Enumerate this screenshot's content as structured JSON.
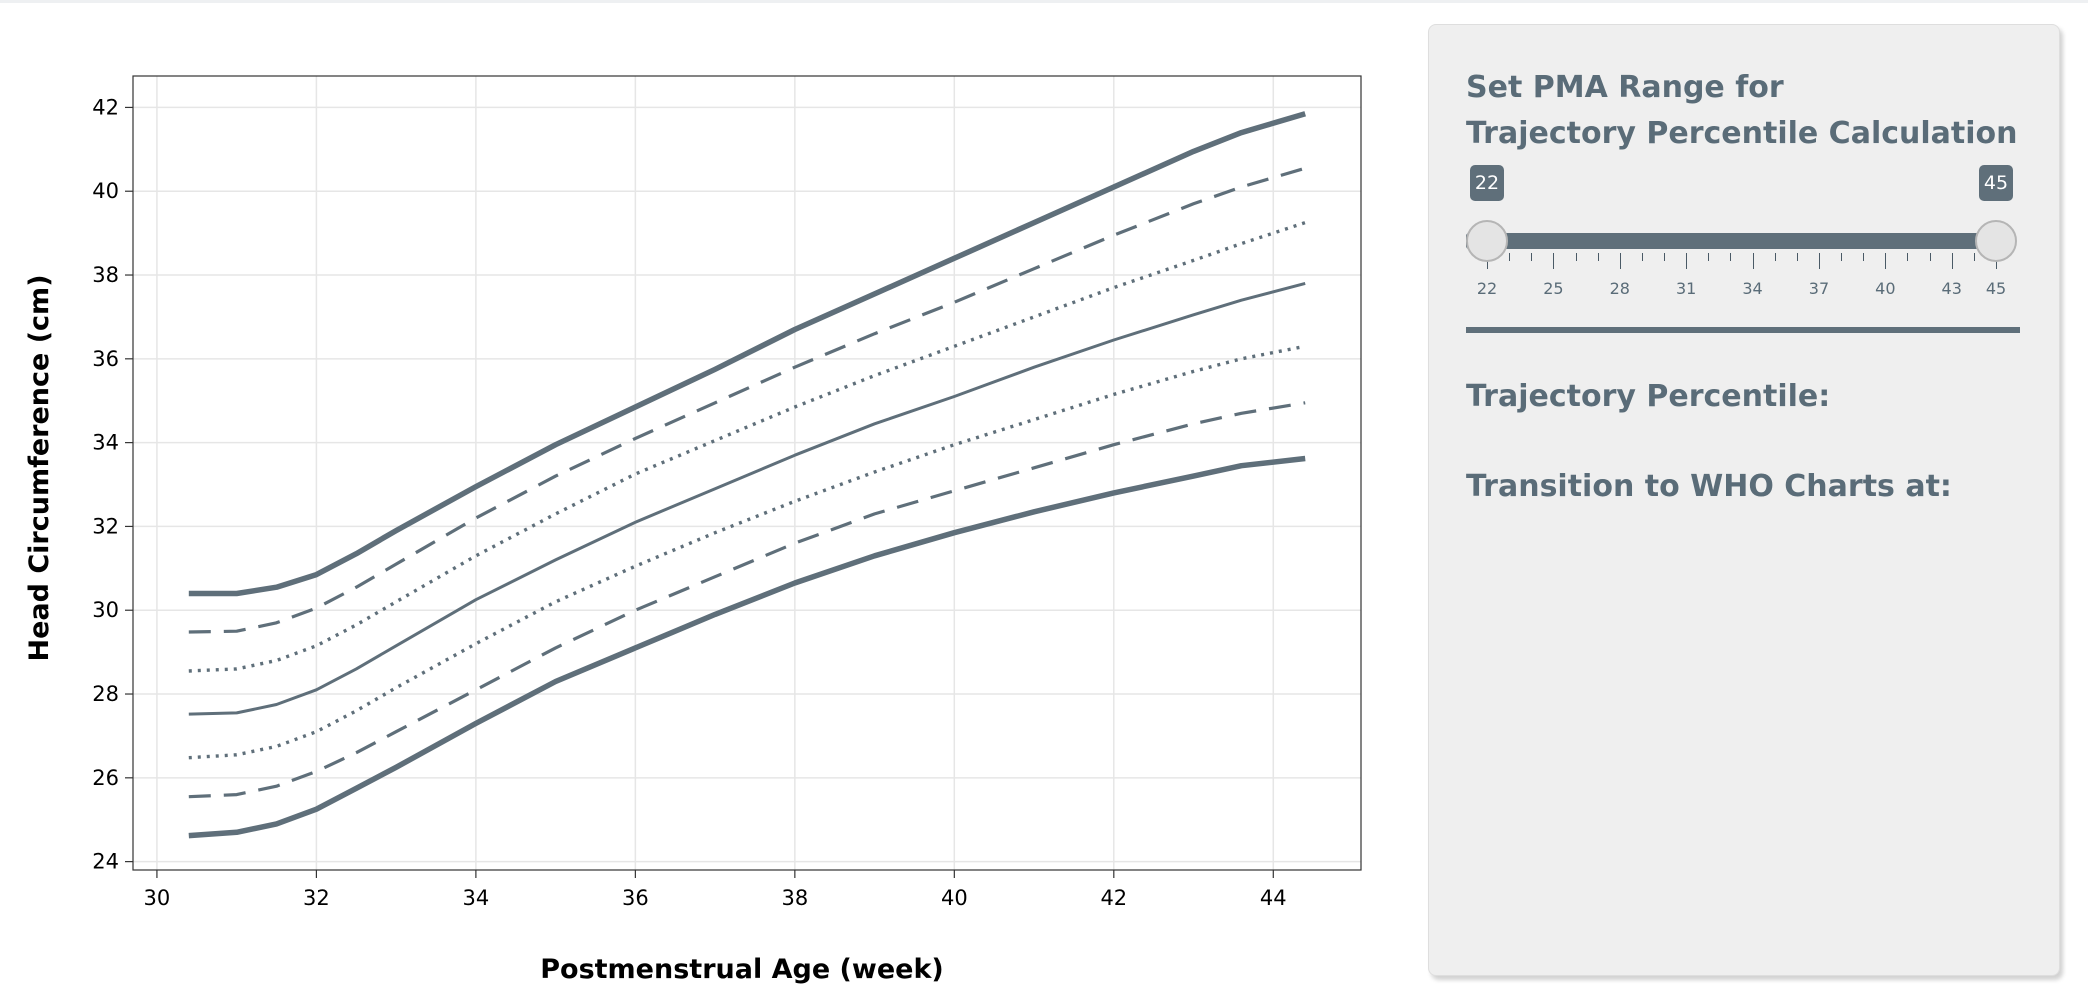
{
  "chart_data": {
    "type": "line",
    "xlabel": "Postmenstrual Age (week)",
    "ylabel": "Head Circumference (cm)",
    "xlim": [
      29.7,
      45.1
    ],
    "ylim": [
      23.8,
      42.75
    ],
    "xticks": [
      30,
      32,
      34,
      36,
      38,
      40,
      42,
      44
    ],
    "yticks": [
      24,
      26,
      28,
      30,
      32,
      34,
      36,
      38,
      40,
      42
    ],
    "grid": true,
    "line_color": "#5f6f7a",
    "series": [
      {
        "style": "thick",
        "points": [
          [
            30.4,
            24.62
          ],
          [
            31.0,
            24.7
          ],
          [
            31.5,
            24.9
          ],
          [
            32.0,
            25.25
          ],
          [
            32.5,
            25.75
          ],
          [
            33.0,
            26.25
          ],
          [
            34.0,
            27.3
          ],
          [
            35.0,
            28.3
          ],
          [
            36.0,
            29.1
          ],
          [
            37.0,
            29.9
          ],
          [
            38.0,
            30.65
          ],
          [
            39.0,
            31.3
          ],
          [
            40.0,
            31.85
          ],
          [
            41.0,
            32.35
          ],
          [
            42.0,
            32.8
          ],
          [
            43.0,
            33.2
          ],
          [
            43.6,
            33.45
          ],
          [
            44.4,
            33.62
          ]
        ]
      },
      {
        "style": "dashed",
        "points": [
          [
            30.4,
            25.55
          ],
          [
            31.0,
            25.6
          ],
          [
            31.5,
            25.8
          ],
          [
            32.0,
            26.15
          ],
          [
            32.5,
            26.6
          ],
          [
            33.0,
            27.1
          ],
          [
            34.0,
            28.1
          ],
          [
            35.0,
            29.1
          ],
          [
            36.0,
            30.0
          ],
          [
            37.0,
            30.8
          ],
          [
            38.0,
            31.6
          ],
          [
            39.0,
            32.3
          ],
          [
            40.0,
            32.85
          ],
          [
            41.0,
            33.4
          ],
          [
            42.0,
            33.95
          ],
          [
            43.0,
            34.45
          ],
          [
            43.6,
            34.7
          ],
          [
            44.4,
            34.95
          ]
        ]
      },
      {
        "style": "dotted",
        "points": [
          [
            30.4,
            26.48
          ],
          [
            31.0,
            26.55
          ],
          [
            31.5,
            26.75
          ],
          [
            32.0,
            27.1
          ],
          [
            32.5,
            27.6
          ],
          [
            33.0,
            28.15
          ],
          [
            34.0,
            29.2
          ],
          [
            35.0,
            30.2
          ],
          [
            36.0,
            31.05
          ],
          [
            37.0,
            31.85
          ],
          [
            38.0,
            32.6
          ],
          [
            39.0,
            33.3
          ],
          [
            40.0,
            33.95
          ],
          [
            41.0,
            34.55
          ],
          [
            42.0,
            35.15
          ],
          [
            43.0,
            35.7
          ],
          [
            43.6,
            36.0
          ],
          [
            44.4,
            36.3
          ]
        ]
      },
      {
        "style": "solid",
        "points": [
          [
            30.4,
            27.52
          ],
          [
            31.0,
            27.55
          ],
          [
            31.5,
            27.75
          ],
          [
            32.0,
            28.1
          ],
          [
            32.5,
            28.6
          ],
          [
            33.0,
            29.15
          ],
          [
            34.0,
            30.25
          ],
          [
            35.0,
            31.2
          ],
          [
            36.0,
            32.1
          ],
          [
            37.0,
            32.9
          ],
          [
            38.0,
            33.7
          ],
          [
            39.0,
            34.45
          ],
          [
            40.0,
            35.1
          ],
          [
            41.0,
            35.8
          ],
          [
            42.0,
            36.45
          ],
          [
            43.0,
            37.05
          ],
          [
            43.6,
            37.4
          ],
          [
            44.4,
            37.8
          ]
        ]
      },
      {
        "style": "dotted",
        "points": [
          [
            30.4,
            28.55
          ],
          [
            31.0,
            28.6
          ],
          [
            31.5,
            28.8
          ],
          [
            32.0,
            29.15
          ],
          [
            32.5,
            29.65
          ],
          [
            33.0,
            30.2
          ],
          [
            34.0,
            31.3
          ],
          [
            35.0,
            32.3
          ],
          [
            36.0,
            33.25
          ],
          [
            37.0,
            34.05
          ],
          [
            38.0,
            34.85
          ],
          [
            39.0,
            35.6
          ],
          [
            40.0,
            36.3
          ],
          [
            41.0,
            37.0
          ],
          [
            42.0,
            37.7
          ],
          [
            43.0,
            38.35
          ],
          [
            43.6,
            38.75
          ],
          [
            44.4,
            39.25
          ]
        ]
      },
      {
        "style": "dashed",
        "points": [
          [
            30.4,
            29.48
          ],
          [
            31.0,
            29.5
          ],
          [
            31.5,
            29.7
          ],
          [
            32.0,
            30.05
          ],
          [
            32.5,
            30.55
          ],
          [
            33.0,
            31.1
          ],
          [
            34.0,
            32.2
          ],
          [
            35.0,
            33.2
          ],
          [
            36.0,
            34.1
          ],
          [
            37.0,
            34.95
          ],
          [
            38.0,
            35.8
          ],
          [
            39.0,
            36.6
          ],
          [
            40.0,
            37.35
          ],
          [
            41.0,
            38.15
          ],
          [
            42.0,
            38.95
          ],
          [
            43.0,
            39.7
          ],
          [
            43.6,
            40.1
          ],
          [
            44.4,
            40.55
          ]
        ]
      },
      {
        "style": "thick",
        "points": [
          [
            30.4,
            30.4
          ],
          [
            31.0,
            30.4
          ],
          [
            31.5,
            30.55
          ],
          [
            32.0,
            30.85
          ],
          [
            32.5,
            31.35
          ],
          [
            33.0,
            31.9
          ],
          [
            34.0,
            32.95
          ],
          [
            35.0,
            33.95
          ],
          [
            36.0,
            34.85
          ],
          [
            37.0,
            35.75
          ],
          [
            38.0,
            36.7
          ],
          [
            39.0,
            37.55
          ],
          [
            40.0,
            38.4
          ],
          [
            41.0,
            39.25
          ],
          [
            42.0,
            40.1
          ],
          [
            43.0,
            40.95
          ],
          [
            43.6,
            41.4
          ],
          [
            44.4,
            41.85
          ]
        ]
      }
    ]
  },
  "panel": {
    "title_line1": "Set PMA Range for",
    "title_line2": "Trajectory Percentile Calculation",
    "slider": {
      "min": 22,
      "max": 45,
      "low": 22,
      "high": 45,
      "low_label": "22",
      "high_label": "45",
      "tick_labels": [
        "22",
        "25",
        "28",
        "31",
        "34",
        "37",
        "40",
        "43",
        "45"
      ]
    },
    "trajectory_label": "Trajectory Percentile:",
    "transition_label": "Transition to WHO Charts at:"
  }
}
